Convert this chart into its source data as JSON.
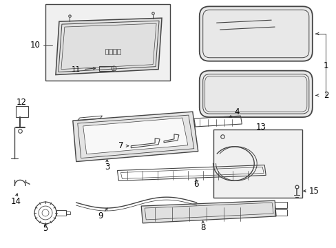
{
  "bg_color": "#ffffff",
  "fig_width": 4.89,
  "fig_height": 3.6,
  "dpi": 100,
  "lc": "#444444",
  "lc_dark": "#222222",
  "fs": 7.5,
  "gray_fill": "#d8d8d8",
  "light_fill": "#eeeeee"
}
